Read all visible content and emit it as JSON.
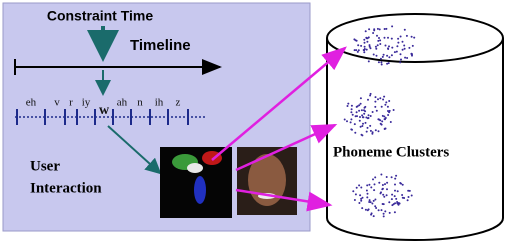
{
  "left_panel": {
    "constraint_label": "Constraint Time",
    "timeline_label": "Timeline",
    "phonemes": [
      "eh",
      "v",
      "r",
      "iy",
      "w",
      "ah",
      "n",
      "ih",
      "z"
    ],
    "user_interaction": [
      "User",
      "Interaction"
    ]
  },
  "right_panel": {
    "label": "Phoneme Clusters"
  }
}
